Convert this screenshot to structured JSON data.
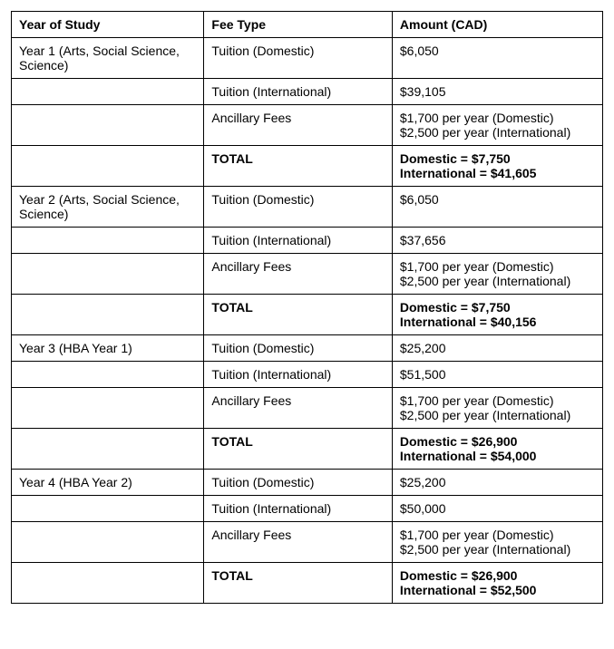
{
  "headers": {
    "year": "Year of Study",
    "fee": "Fee Type",
    "amount": "Amount (CAD)"
  },
  "sections": [
    {
      "year": "Year 1 (Arts, Social Science, Science)",
      "rows": [
        {
          "fee": "Tuition (Domestic)",
          "amount": "$6,050",
          "bold": false
        },
        {
          "fee": "Tuition (International)",
          "amount": "$39,105",
          "bold": false
        },
        {
          "fee": "Ancillary Fees",
          "amount": "$1,700 per year (Domestic)\n$2,500 per year (International)",
          "bold": false
        },
        {
          "fee": "TOTAL",
          "amount": "Domestic = $7,750\nInternational = $41,605",
          "bold": true
        }
      ]
    },
    {
      "year": "Year 2 (Arts, Social Science, Science)",
      "rows": [
        {
          "fee": "Tuition (Domestic)",
          "amount": "$6,050",
          "bold": false
        },
        {
          "fee": "Tuition (International)",
          "amount": "$37,656",
          "bold": false
        },
        {
          "fee": "Ancillary Fees",
          "amount": "$1,700 per year (Domestic)\n$2,500 per year (International)",
          "bold": false
        },
        {
          "fee": "TOTAL",
          "amount": "Domestic = $7,750\nInternational = $40,156",
          "bold": true
        }
      ]
    },
    {
      "year": "Year 3 (HBA Year 1)",
      "rows": [
        {
          "fee": "Tuition (Domestic)",
          "amount": "$25,200",
          "bold": false
        },
        {
          "fee": "Tuition (International)",
          "amount": "$51,500",
          "bold": false
        },
        {
          "fee": "Ancillary Fees",
          "amount": "$1,700 per year (Domestic)\n$2,500 per year (International)",
          "bold": false
        },
        {
          "fee": "TOTAL",
          "amount": "Domestic = $26,900\nInternational = $54,000",
          "bold": true
        }
      ]
    },
    {
      "year": "Year 4 (HBA Year 2)",
      "rows": [
        {
          "fee": "Tuition (Domestic)",
          "amount": "$25,200",
          "bold": false
        },
        {
          "fee": "Tuition (International)",
          "amount": "$50,000",
          "bold": false
        },
        {
          "fee": "Ancillary Fees",
          "amount": "$1,700 per year (Domestic)\n$2,500 per year (International)",
          "bold": false
        },
        {
          "fee": "TOTAL",
          "amount": "Domestic = $26,900\nInternational = $52,500",
          "bold": true
        }
      ]
    }
  ]
}
